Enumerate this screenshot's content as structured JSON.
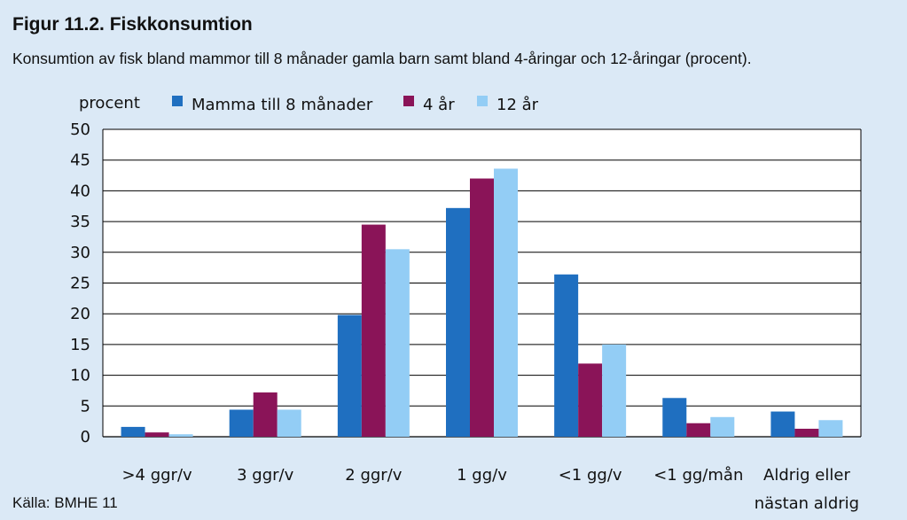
{
  "figure": {
    "title": "Figur 11.2. Fiskkonsumtion",
    "subtitle": "Konsumtion av fisk bland mammor till 8 månader gamla barn samt bland 4-åringar och 12-åringar (procent).",
    "source": "Källa: BMHE 11"
  },
  "colors": {
    "background": "#dbe9f6",
    "plot_background": "#ffffff"
  },
  "chart_data": {
    "type": "bar",
    "title": "",
    "xlabel": "",
    "ylabel": "procent",
    "ylim": [
      0,
      50
    ],
    "yticks": [
      0,
      5,
      10,
      15,
      20,
      25,
      30,
      35,
      40,
      45,
      50
    ],
    "grid": true,
    "legend_position": "top",
    "categories": [
      [
        ">4 ggr/v"
      ],
      [
        "3 ggr/v"
      ],
      [
        "2 ggr/v"
      ],
      [
        "1 gg/v"
      ],
      [
        "<1 gg/v"
      ],
      [
        "<1 gg/mån"
      ],
      [
        "Aldrig eller",
        "nästan aldrig"
      ]
    ],
    "series": [
      {
        "name": "Mamma till 8 månader",
        "color": "#1f6fc0",
        "values": [
          1.6,
          4.4,
          19.8,
          37.2,
          26.4,
          6.3,
          4.1
        ]
      },
      {
        "name": "4 år",
        "color": "#8a1458",
        "values": [
          0.7,
          7.2,
          34.5,
          42.0,
          11.9,
          2.2,
          1.3
        ]
      },
      {
        "name": "12 år",
        "color": "#93cdf5",
        "values": [
          0.4,
          4.4,
          30.5,
          43.6,
          15.0,
          3.2,
          2.7
        ]
      }
    ]
  }
}
